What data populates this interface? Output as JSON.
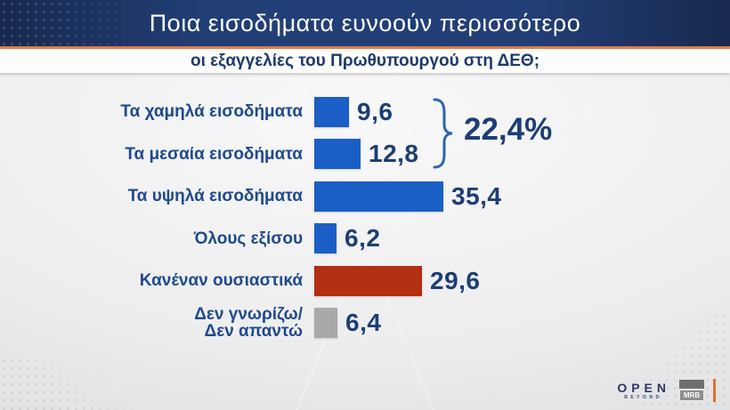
{
  "header": {
    "title": "Ποια εισοδήματα ευνοούν περισσότερο",
    "subtitle": "οι εξαγγελίες του Πρωθυπουργού στη ΔΕΘ;"
  },
  "chart_data": {
    "type": "bar",
    "orientation": "horizontal",
    "categories": [
      "Τα χαμηλά εισοδήματα",
      "Τα μεσαία εισοδήματα",
      "Τα υψηλά εισοδήματα",
      "Όλους εξίσου",
      "Κανέναν ουσιαστικά",
      "Δεν γνωρίζω/\nΔεν απαντώ"
    ],
    "values": [
      9.6,
      12.8,
      35.4,
      6.2,
      29.6,
      6.4
    ],
    "value_labels": [
      "9,6",
      "12,8",
      "35,4",
      "6,2",
      "29,6",
      "6,4"
    ],
    "bar_colors": [
      "#1b5ec6",
      "#1b5ec6",
      "#1b5ec6",
      "#1b5ec6",
      "#b22f12",
      "#a9a9a9"
    ],
    "xlim": [
      0,
      40
    ],
    "grid": false,
    "legend": false,
    "annotation": {
      "text": "22,4%",
      "applies_to": [
        "Τα χαμηλά εισοδήματα",
        "Τα μεσαία εισοδήματα"
      ]
    }
  },
  "footer": {
    "open_logo": "OPEN",
    "open_sub": "BEYOND",
    "mrb_logo": "MRB"
  },
  "colors": {
    "header_bg": "#213e75",
    "accent_orange": "#e07e46",
    "text_navy": "#1c3e74",
    "label_blue": "#1e4a8c",
    "bar_blue": "#1b5ec6",
    "bar_red": "#b22f12",
    "bar_gray": "#a9a9a9"
  }
}
